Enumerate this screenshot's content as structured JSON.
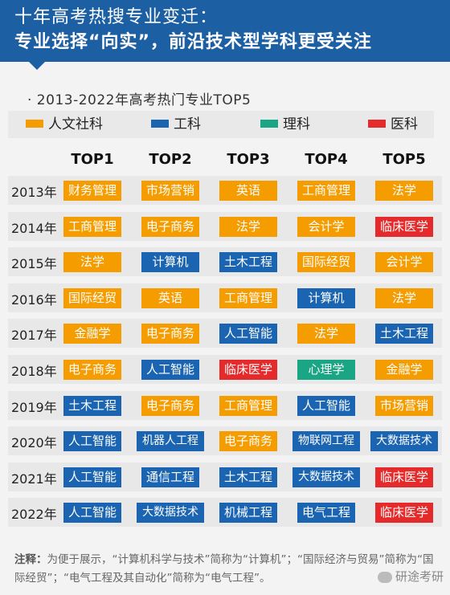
{
  "header": {
    "line1": "十年高考热搜专业变迁：",
    "line2": "专业选择“向实”，前沿技术型学科更受关注"
  },
  "subtitle": "· 2013-2022年高考热门专业TOP5",
  "colors": {
    "人文社科": "#f59c00",
    "工科": "#1a64b2",
    "理科": "#1aa585",
    "医科": "#e42a2a"
  },
  "chart_data": {
    "type": "table",
    "title": "2013-2022年高考热门专业TOP5",
    "legend": [
      {
        "label": "人文社科",
        "color": "#f59c00"
      },
      {
        "label": "工科",
        "color": "#1a64b2"
      },
      {
        "label": "理科",
        "color": "#1aa585"
      },
      {
        "label": "医科",
        "color": "#e42a2a"
      }
    ],
    "columns": [
      "TOP1",
      "TOP2",
      "TOP3",
      "TOP4",
      "TOP5"
    ],
    "rows": [
      {
        "year": "2013年",
        "cells": [
          {
            "name": "财务管理",
            "cat": "人文社科"
          },
          {
            "name": "市场营销",
            "cat": "人文社科"
          },
          {
            "name": "英语",
            "cat": "人文社科"
          },
          {
            "name": "工商管理",
            "cat": "人文社科"
          },
          {
            "name": "法学",
            "cat": "人文社科"
          }
        ]
      },
      {
        "year": "2014年",
        "cells": [
          {
            "name": "工商管理",
            "cat": "人文社科"
          },
          {
            "name": "电子商务",
            "cat": "人文社科"
          },
          {
            "name": "法学",
            "cat": "人文社科"
          },
          {
            "name": "会计学",
            "cat": "人文社科"
          },
          {
            "name": "临床医学",
            "cat": "医科"
          }
        ]
      },
      {
        "year": "2015年",
        "cells": [
          {
            "name": "法学",
            "cat": "人文社科"
          },
          {
            "name": "计算机",
            "cat": "工科"
          },
          {
            "name": "土木工程",
            "cat": "工科"
          },
          {
            "name": "国际经贸",
            "cat": "人文社科"
          },
          {
            "name": "会计学",
            "cat": "人文社科"
          }
        ]
      },
      {
        "year": "2016年",
        "cells": [
          {
            "name": "国际经贸",
            "cat": "人文社科"
          },
          {
            "name": "英语",
            "cat": "人文社科"
          },
          {
            "name": "工商管理",
            "cat": "人文社科"
          },
          {
            "name": "计算机",
            "cat": "工科"
          },
          {
            "name": "法学",
            "cat": "人文社科"
          }
        ]
      },
      {
        "year": "2017年",
        "cells": [
          {
            "name": "金融学",
            "cat": "人文社科"
          },
          {
            "name": "电子商务",
            "cat": "人文社科"
          },
          {
            "name": "人工智能",
            "cat": "工科"
          },
          {
            "name": "法学",
            "cat": "人文社科"
          },
          {
            "name": "土木工程",
            "cat": "工科"
          }
        ]
      },
      {
        "year": "2018年",
        "cells": [
          {
            "name": "电子商务",
            "cat": "人文社科"
          },
          {
            "name": "人工智能",
            "cat": "工科"
          },
          {
            "name": "临床医学",
            "cat": "医科"
          },
          {
            "name": "心理学",
            "cat": "理科"
          },
          {
            "name": "金融学",
            "cat": "人文社科"
          }
        ]
      },
      {
        "year": "2019年",
        "cells": [
          {
            "name": "土木工程",
            "cat": "工科"
          },
          {
            "name": "电子商务",
            "cat": "人文社科"
          },
          {
            "name": "工商管理",
            "cat": "人文社科"
          },
          {
            "name": "人工智能",
            "cat": "工科"
          },
          {
            "name": "市场营销",
            "cat": "人文社科"
          }
        ]
      },
      {
        "year": "2020年",
        "cells": [
          {
            "name": "人工智能",
            "cat": "工科"
          },
          {
            "name": "机器人工程",
            "cat": "工科"
          },
          {
            "name": "电子商务",
            "cat": "人文社科"
          },
          {
            "name": "物联网工程",
            "cat": "工科"
          },
          {
            "name": "大数据技术",
            "cat": "工科"
          }
        ]
      },
      {
        "year": "2021年",
        "cells": [
          {
            "name": "人工智能",
            "cat": "工科"
          },
          {
            "name": "通信工程",
            "cat": "工科"
          },
          {
            "name": "土木工程",
            "cat": "工科"
          },
          {
            "name": "大数据技术",
            "cat": "工科"
          },
          {
            "name": "临床医学",
            "cat": "医科"
          }
        ]
      },
      {
        "year": "2022年",
        "cells": [
          {
            "name": "人工智能",
            "cat": "工科"
          },
          {
            "name": "大数据技术",
            "cat": "工科"
          },
          {
            "name": "机械工程",
            "cat": "工科"
          },
          {
            "name": "电气工程",
            "cat": "工科"
          },
          {
            "name": "临床医学",
            "cat": "医科"
          }
        ]
      }
    ]
  },
  "note": {
    "label": "注释：",
    "text": "为便于展示，“计算机科学与技术”简称为“计算机”；“国际经济与贸易”简称为“国际经贸”；“电气工程及其自动化”简称为“电气工程”。"
  },
  "watermark": "研途考研"
}
